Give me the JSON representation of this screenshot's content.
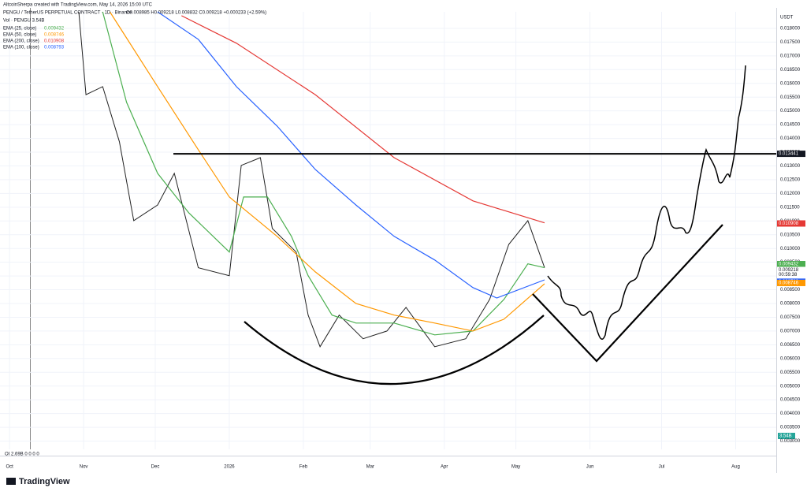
{
  "header": {
    "credit": "AltcoinSherpa created with TradingView.com, May 14, 2026 15:00 UTC",
    "symbol": "PENGU / TetherUS PERPETUAL CONTRACT · 1D · Binance",
    "ohlc": "O0.008985 H0.009218 L0.008832 C0.009218 +0.000233 (+2.59%)",
    "volume": "Vol · PENGU 3.54B",
    "currency": "USDT"
  },
  "chart_data": {
    "type": "line",
    "xlim": [
      -4,
      321
    ],
    "ylim": [
      0.0027,
      0.0186
    ],
    "xticks": [
      {
        "value": 0,
        "label": "Oct"
      },
      {
        "value": 31,
        "label": "Nov"
      },
      {
        "value": 61,
        "label": "Dec"
      },
      {
        "value": 92,
        "label": "2026"
      },
      {
        "value": 123,
        "label": "Feb"
      },
      {
        "value": 151,
        "label": "Mar"
      },
      {
        "value": 182,
        "label": "Apr"
      },
      {
        "value": 212,
        "label": "May"
      },
      {
        "value": 243,
        "label": "Jun"
      },
      {
        "value": 273,
        "label": "Jul"
      },
      {
        "value": 304,
        "label": "Aug"
      }
    ],
    "yticks": [
      {
        "value": 0.003,
        "label": "0.003000"
      },
      {
        "value": 0.0035,
        "label": "0.003500"
      },
      {
        "value": 0.004,
        "label": "0.004000"
      },
      {
        "value": 0.0045,
        "label": "0.004500"
      },
      {
        "value": 0.005,
        "label": "0.005000"
      },
      {
        "value": 0.0055,
        "label": "0.005500"
      },
      {
        "value": 0.006,
        "label": "0.006000"
      },
      {
        "value": 0.0065,
        "label": "0.006500"
      },
      {
        "value": 0.007,
        "label": "0.007000"
      },
      {
        "value": 0.0075,
        "label": "0.007500"
      },
      {
        "value": 0.008,
        "label": "0.008000"
      },
      {
        "value": 0.0085,
        "label": "0.008500"
      },
      {
        "value": 0.009,
        "label": "0.009000"
      },
      {
        "value": 0.0095,
        "label": "0.009500"
      },
      {
        "value": 0.01,
        "label": "0.010000"
      },
      {
        "value": 0.0105,
        "label": "0.010500"
      },
      {
        "value": 0.011,
        "label": "0.011000"
      },
      {
        "value": 0.0115,
        "label": "0.011500"
      },
      {
        "value": 0.012,
        "label": "0.012000"
      },
      {
        "value": 0.0125,
        "label": "0.012500"
      },
      {
        "value": 0.013,
        "label": "0.013000"
      },
      {
        "value": 0.0135,
        "label": "0.013500"
      },
      {
        "value": 0.014,
        "label": "0.014000"
      },
      {
        "value": 0.0145,
        "label": "0.014500"
      },
      {
        "value": 0.015,
        "label": "0.015000"
      },
      {
        "value": 0.0155,
        "label": "0.015500"
      },
      {
        "value": 0.016,
        "label": "0.016000"
      },
      {
        "value": 0.0165,
        "label": "0.016500"
      },
      {
        "value": 0.017,
        "label": "0.017000"
      },
      {
        "value": 0.0175,
        "label": "0.017500"
      },
      {
        "value": 0.018,
        "label": "0.018000"
      }
    ],
    "series": [
      {
        "color": "#222222",
        "x": [
          29,
          32,
          39,
          46,
          52,
          62,
          69,
          79,
          92,
          97,
          105,
          110,
          120,
          125,
          130,
          138,
          148,
          158,
          166,
          178,
          191,
          201,
          209,
          217,
          224
        ],
        "values": [
          0.0186,
          0.01559,
          0.01588,
          0.01388,
          0.01101,
          0.01158,
          0.01273,
          0.0093,
          0.00901,
          0.01302,
          0.0133,
          0.01073,
          0.00987,
          0.00758,
          0.00643,
          0.00758,
          0.00672,
          0.007,
          0.00786,
          0.00643,
          0.00672,
          0.00815,
          0.01015,
          0.01101,
          0.0093
        ]
      },
      {
        "name": "EMA (25, close)",
        "last": "0.009432",
        "color": "#4caf50",
        "x": [
          39,
          49,
          62,
          75,
          92,
          98,
          108,
          118,
          125,
          135,
          145,
          161,
          178,
          194,
          207,
          217,
          224
        ],
        "values": [
          0.0186,
          0.01531,
          0.01273,
          0.0113,
          0.00987,
          0.01187,
          0.01187,
          0.01044,
          0.00901,
          0.00758,
          0.00729,
          0.00729,
          0.00686,
          0.007,
          0.00815,
          0.00944,
          0.0093
        ]
      },
      {
        "name": "EMA (50, close)",
        "last": "0.008746",
        "color": "#ff9800",
        "x": [
          42,
          62,
          79,
          92,
          112,
          128,
          145,
          161,
          178,
          194,
          207,
          224
        ],
        "values": [
          0.0186,
          0.01588,
          0.01359,
          0.01187,
          0.01044,
          0.00915,
          0.008,
          0.00758,
          0.00729,
          0.007,
          0.00743,
          0.00872
        ]
      },
      {
        "name": "EMA (200, close)",
        "last": "0.010908",
        "color": "#e53935",
        "x": [
          72,
          95,
          128,
          161,
          194,
          224
        ],
        "values": [
          0.01846,
          0.01746,
          0.01559,
          0.0133,
          0.01173,
          0.01093
        ]
      },
      {
        "name": "EMA (100, close)",
        "last": "0.008793",
        "color": "#2962ff",
        "x": [
          62,
          79,
          95,
          112,
          128,
          145,
          161,
          178,
          194,
          204,
          224
        ],
        "values": [
          0.0186,
          0.0176,
          0.01588,
          0.01445,
          0.01287,
          0.01158,
          0.01044,
          0.00958,
          0.00858,
          0.0082,
          0.00886
        ]
      }
    ],
    "level": {
      "value": 0.013441,
      "label": "0.013441"
    },
    "price_labels": [
      {
        "value": 0.010908,
        "label": "0.010908",
        "color": "#e53935"
      },
      {
        "value": 0.009432,
        "label": "0.009432",
        "color": "#4caf50"
      },
      {
        "value": 0.009218,
        "label": "0.009218",
        "color": "#ffffff"
      },
      {
        "value": 0.008793,
        "label": "0.008793",
        "color": "#2962ff"
      },
      {
        "value": 0.008746,
        "label": "0.008746",
        "color": "#ff9800"
      }
    ],
    "countdown": "00:59:38",
    "grid": true
  },
  "footer": {
    "oi": "OI 2.69B 0 0 0 0",
    "volume_badge": "3.54B",
    "brand": "TradingView"
  }
}
